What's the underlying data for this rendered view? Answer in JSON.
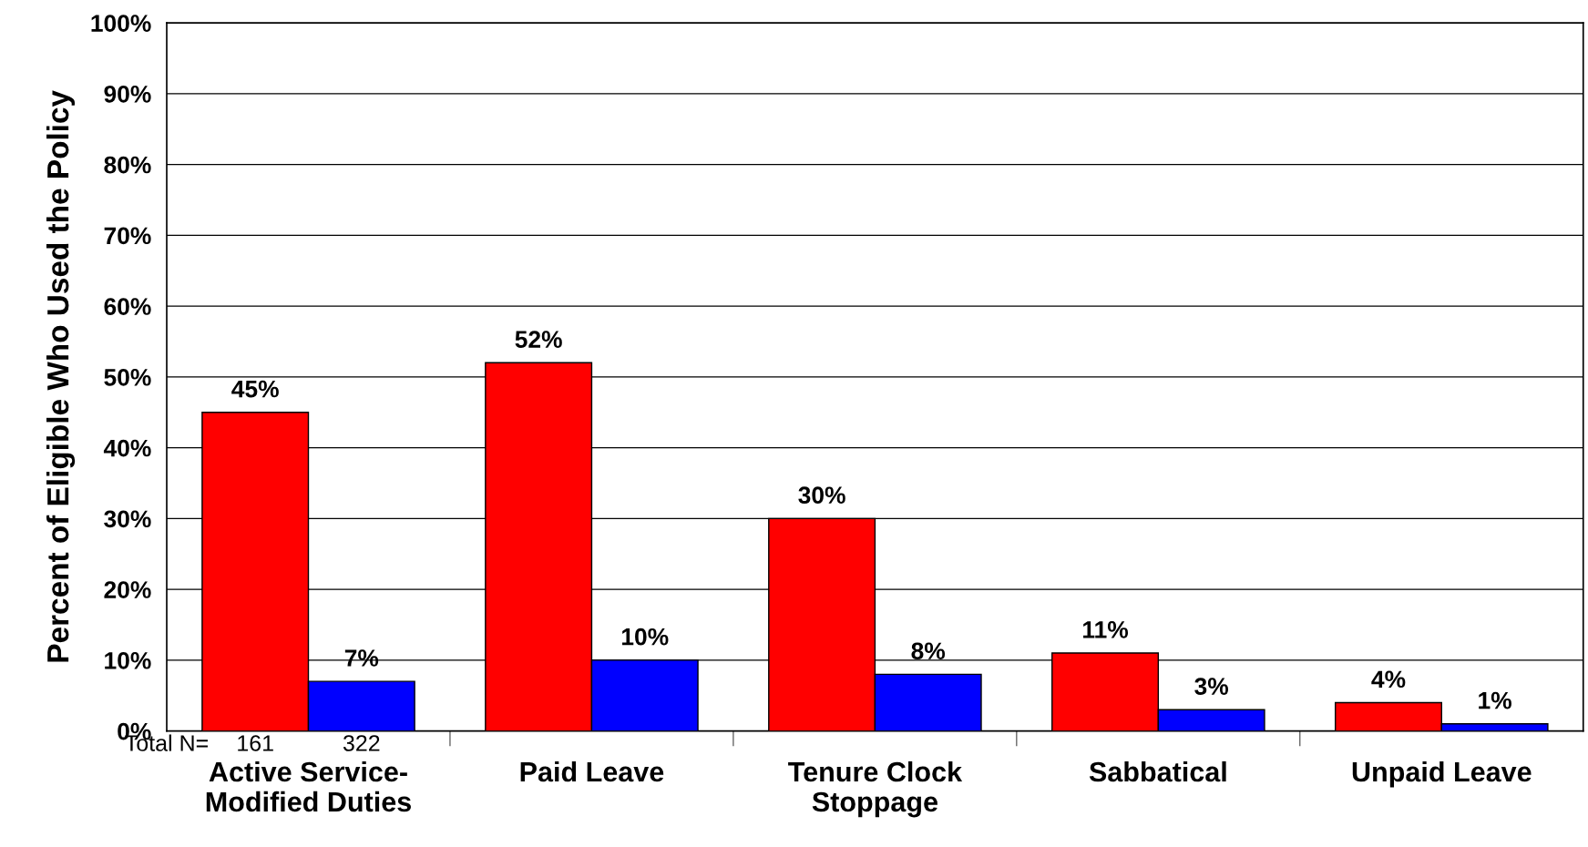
{
  "chart_data": {
    "type": "bar",
    "ylabel": "Percent of Eligible Who Used the Policy",
    "categories": [
      "Active Service-\nModified Duties",
      "Paid Leave",
      "Tenure Clock\nStoppage",
      "Sabbatical",
      "Unpaid Leave"
    ],
    "series": [
      {
        "color": "#ff0000",
        "values": [
          45,
          52,
          30,
          11,
          4
        ],
        "value_labels": [
          "45%",
          "52%",
          "30%",
          "11%",
          "4%"
        ]
      },
      {
        "color": "#0000ff",
        "values": [
          7,
          10,
          8,
          3,
          1
        ],
        "value_labels": [
          "7%",
          "10%",
          "8%",
          "3%",
          "1%"
        ]
      }
    ],
    "ylim": [
      0,
      100
    ],
    "yticks": [
      {
        "value": 0,
        "label": "0%"
      },
      {
        "value": 10,
        "label": "10%"
      },
      {
        "value": 20,
        "label": "20%"
      },
      {
        "value": 30,
        "label": "30%"
      },
      {
        "value": 40,
        "label": "40%"
      },
      {
        "value": 50,
        "label": "50%"
      },
      {
        "value": 60,
        "label": "60%"
      },
      {
        "value": 70,
        "label": "70%"
      },
      {
        "value": 80,
        "label": "80%"
      },
      {
        "value": 90,
        "label": "90%"
      },
      {
        "value": 100,
        "label": "100%"
      }
    ],
    "grid": "y",
    "legend": false,
    "annotations": [
      "Total N=",
      "161",
      "322"
    ]
  }
}
